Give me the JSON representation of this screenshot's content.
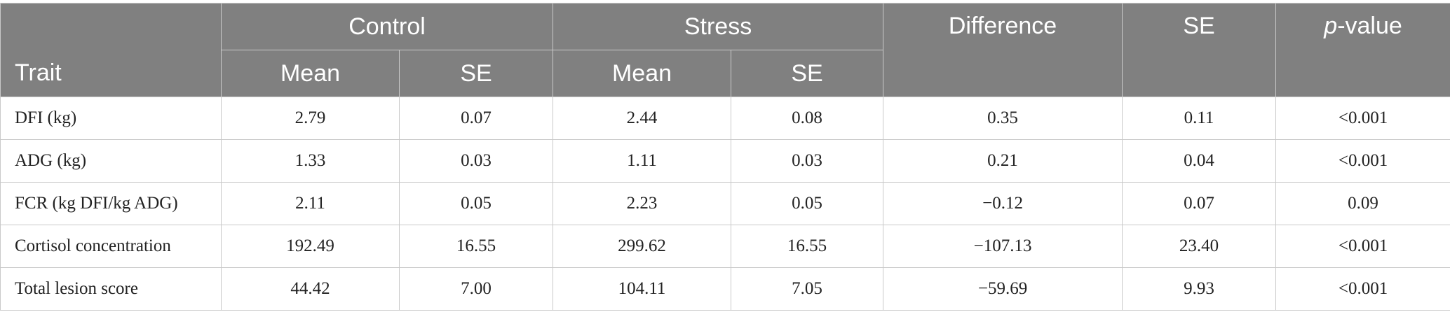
{
  "table": {
    "headers": {
      "group_control": "Control",
      "group_stress": "Stress",
      "difference": "Difference",
      "se": "SE",
      "p_value_italic": "p",
      "p_value_rest": "-value",
      "trait": "Trait",
      "control_mean": "Mean",
      "control_se": "SE",
      "stress_mean": "Mean",
      "stress_se": "SE"
    },
    "rows": [
      {
        "trait": "DFI (kg)",
        "control_mean": "2.79",
        "control_se": "0.07",
        "stress_mean": "2.44",
        "stress_se": "0.08",
        "difference": "0.35",
        "se": "0.11",
        "p_value": "<0.001"
      },
      {
        "trait": "ADG (kg)",
        "control_mean": "1.33",
        "control_se": "0.03",
        "stress_mean": "1.11",
        "stress_se": "0.03",
        "difference": "0.21",
        "se": "0.04",
        "p_value": "<0.001"
      },
      {
        "trait": "FCR (kg DFI/kg ADG)",
        "control_mean": "2.11",
        "control_se": "0.05",
        "stress_mean": "2.23",
        "stress_se": "0.05",
        "difference": "−0.12",
        "se": "0.07",
        "p_value": "0.09"
      },
      {
        "trait": "Cortisol concentration",
        "control_mean": "192.49",
        "control_se": "16.55",
        "stress_mean": "299.62",
        "stress_se": "16.55",
        "difference": "−107.13",
        "se": "23.40",
        "p_value": "<0.001"
      },
      {
        "trait": "Total lesion score",
        "control_mean": "44.42",
        "control_se": "7.00",
        "stress_mean": "104.11",
        "stress_se": "7.05",
        "difference": "−59.69",
        "se": "9.93",
        "p_value": "<0.001"
      }
    ]
  },
  "colors": {
    "header_bg": "#808080",
    "header_text": "#ffffff",
    "grid_line": "#c9c9c9",
    "body_text": "#222222"
  }
}
